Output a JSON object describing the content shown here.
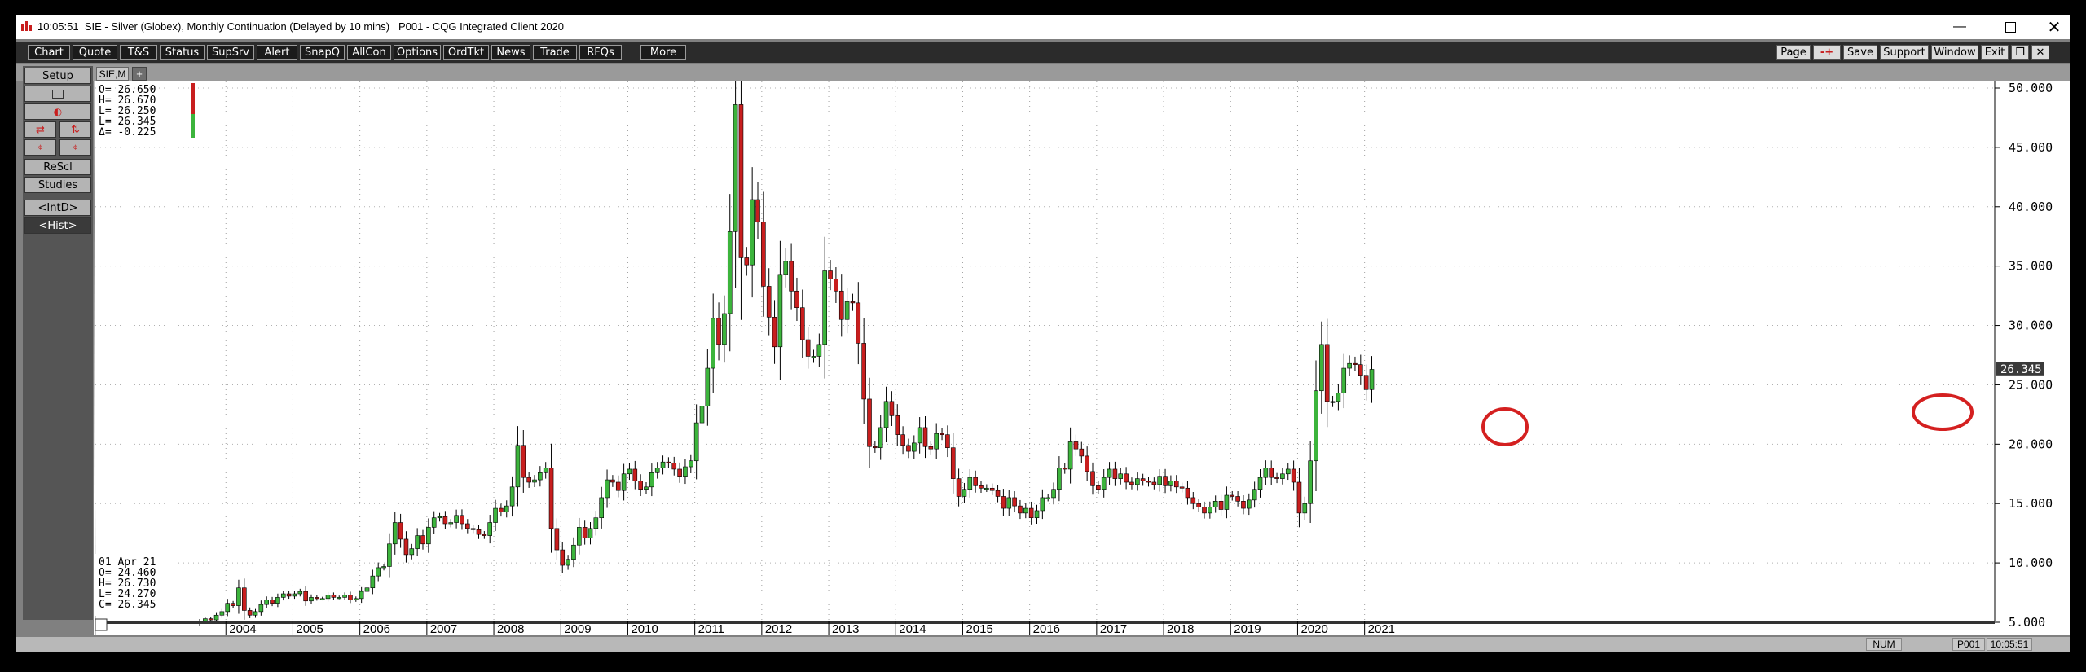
{
  "window": {
    "time": "10:05:51",
    "title": "SIE - Silver (Globex), Monthly Continuation (Delayed by 10 mins)   P001 - CQG Integrated Client 2020",
    "controls": [
      "minimize-icon",
      "maximize-icon",
      "close-icon"
    ]
  },
  "menu": {
    "left": [
      "Chart",
      "Quote",
      "T&S",
      "Status",
      "SupSrv",
      "Alert",
      "SnapQ",
      "AllCon",
      "Options",
      "OrdTkt",
      "News",
      "Trade",
      "RFQs",
      "More"
    ],
    "right": [
      "Page",
      "-+",
      "Save",
      "Support",
      "Window",
      "Exit"
    ]
  },
  "sidebar": {
    "setup": "Setup",
    "rescl": "ReScl",
    "studies": "Studies",
    "intd": "<IntD>",
    "hist": "<Hist>"
  },
  "tab": {
    "label": "SIE,M",
    "add": "+"
  },
  "ohlc_top": {
    "o": "O= 26.650",
    "h": "H= 26.670",
    "l": "L= 26.250",
    "l2": "L= 26.345",
    "d": "Δ= -0.225"
  },
  "ohlc_bottom": {
    "date": "01 Apr 21",
    "o": "O=  24.460",
    "h": "H=  26.730",
    "l": "L=  24.270",
    "c": "C=  26.345"
  },
  "last_price": "26.345",
  "status": {
    "num": "NUM",
    "page": "P001",
    "time": "10:05:51"
  },
  "colors": {
    "up": "#3cb43c",
    "down": "#c81e1e",
    "bg": "#ffffff",
    "circle": "#d42020",
    "price_tag": "#3a3a3a"
  },
  "chart_data": {
    "type": "candlestick",
    "title": "SIE - Silver (Globex), Monthly Continuation",
    "ylim": [
      3,
      51
    ],
    "yticks": [
      "50.000",
      "45.000",
      "40.000",
      "35.000",
      "30.000",
      "25.000",
      "20.000",
      "15.000",
      "10.000",
      "5.000"
    ],
    "x_labels": [
      "2004",
      "2005",
      "2006",
      "2007",
      "2008",
      "2009",
      "2010",
      "2011",
      "2012",
      "2013",
      "2014",
      "2015",
      "2016",
      "2017",
      "2018",
      "2019",
      "2020",
      "2021"
    ],
    "start": "Aug 2003",
    "closes": [
      5.1,
      5.3,
      5.2,
      5.6,
      5.9,
      6.6,
      6.4,
      7.9,
      6.0,
      5.6,
      5.9,
      6.5,
      6.9,
      6.6,
      7.1,
      7.4,
      7.2,
      7.4,
      7.6,
      6.8,
      7.1,
      7.0,
      7.0,
      7.3,
      7.1,
      7.1,
      7.3,
      6.9,
      7.0,
      7.6,
      7.9,
      8.9,
      9.6,
      9.7,
      11.6,
      13.4,
      12.0,
      10.7,
      11.2,
      12.3,
      11.6,
      13.0,
      13.8,
      13.9,
      13.3,
      13.4,
      14.0,
      13.3,
      12.9,
      12.8,
      12.4,
      12.3,
      13.4,
      14.6,
      14.3,
      14.8,
      16.4,
      19.9,
      17.2,
      16.8,
      17.0,
      17.6,
      18.0,
      12.9,
      11.1,
      9.8,
      10.3,
      11.5,
      13.0,
      12.1,
      12.9,
      13.8,
      15.5,
      17.0,
      16.8,
      16.1,
      17.5,
      17.9,
      16.9,
      16.2,
      16.4,
      17.6,
      18.0,
      18.5,
      18.4,
      17.9,
      17.3,
      18.1,
      18.6,
      21.8,
      23.2,
      26.4,
      30.6,
      28.4,
      31.0,
      37.9,
      48.6,
      35.7,
      35.1,
      40.6,
      38.7,
      33.3,
      30.7,
      28.2,
      34.3,
      35.4,
      32.9,
      31.5,
      28.8,
      27.4,
      27.4,
      28.4,
      34.6,
      33.9,
      32.9,
      30.5,
      32.0,
      31.9,
      28.5,
      23.8,
      19.8,
      19.7,
      21.4,
      23.6,
      22.4,
      20.8,
      19.9,
      19.4,
      20.1,
      21.4,
      19.8,
      19.6,
      20.9,
      20.8,
      19.7,
      17.1,
      15.6,
      16.2,
      17.2,
      16.5,
      16.3,
      16.3,
      16.1,
      15.6,
      14.6,
      15.5,
      14.8,
      14.2,
      14.6,
      13.8,
      14.4,
      15.5,
      15.5,
      16.2,
      18.0,
      17.9,
      20.2,
      19.6,
      19.0,
      17.7,
      16.5,
      16.2,
      17.2,
      17.9,
      17.1,
      17.5,
      16.8,
      16.6,
      17.1,
      16.9,
      16.8,
      16.6,
      17.3,
      16.5,
      16.9,
      16.4,
      16.3,
      15.5,
      15.0,
      14.7,
      14.2,
      14.7,
      15.2,
      14.5,
      15.7,
      15.6,
      15.2,
      14.6,
      15.3,
      16.2,
      17.2,
      18.0,
      17.2,
      17.1,
      17.5,
      17.9,
      16.8,
      14.2,
      15.0,
      18.6,
      24.5,
      28.4,
      23.6,
      23.6,
      24.3,
      26.4,
      26.8,
      26.7,
      25.8,
      24.6,
      26.3
    ]
  }
}
